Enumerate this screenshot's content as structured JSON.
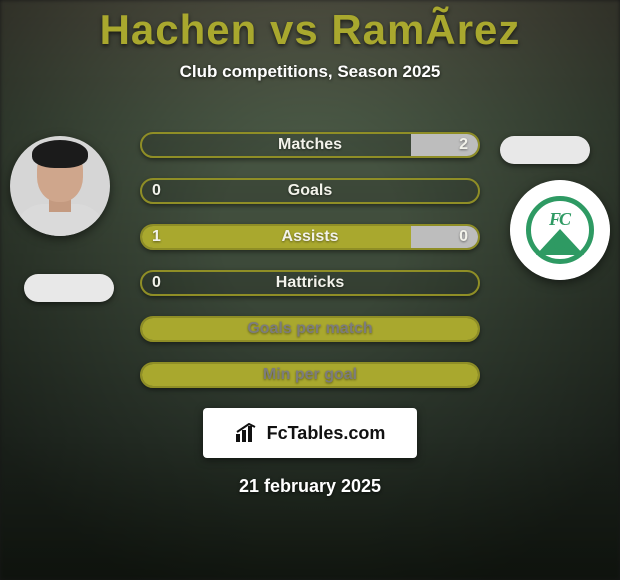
{
  "header": {
    "title": "Hachen vs RamÃ­rez",
    "subtitle": "Club competitions, Season 2025",
    "title_color": "#a9a82e"
  },
  "palette": {
    "olive": "#a9a82e",
    "olive_border": "#8f8e26",
    "grey_fill": "#bdbdbd",
    "text_light": "#f2f2ea",
    "text_grey": "#7c7c7c",
    "label_fontsize": 16
  },
  "avatars": {
    "left_name": "player-hachen",
    "right_name": "club-ferro"
  },
  "bars": [
    {
      "key": "matches",
      "label": "Matches",
      "left_val": "",
      "right_val": "2",
      "left_pct": 0,
      "right_pct": 20,
      "left_color": "",
      "right_color": "#bdbdbd",
      "label_color": "#f2f2ea"
    },
    {
      "key": "goals",
      "label": "Goals",
      "left_val": "0",
      "right_val": "",
      "left_pct": 0,
      "right_pct": 0,
      "left_color": "",
      "right_color": "",
      "label_color": "#f2f2ea"
    },
    {
      "key": "assists",
      "label": "Assists",
      "left_val": "1",
      "right_val": "0",
      "left_pct": 80,
      "right_pct": 20,
      "left_color": "#a9a82e",
      "right_color": "#bdbdbd",
      "label_color": "#f2f2ea"
    },
    {
      "key": "hattricks",
      "label": "Hattricks",
      "left_val": "0",
      "right_val": "",
      "left_pct": 0,
      "right_pct": 0,
      "left_color": "",
      "right_color": "",
      "label_color": "#f2f2ea"
    },
    {
      "key": "gpm",
      "label": "Goals per match",
      "left_val": "",
      "right_val": "",
      "left_pct": 100,
      "right_pct": 0,
      "left_color": "#a9a82e",
      "right_color": "",
      "label_color": "#7c7c7c"
    },
    {
      "key": "mpg",
      "label": "Min per goal",
      "left_val": "",
      "right_val": "",
      "left_pct": 100,
      "right_pct": 0,
      "left_color": "#a9a82e",
      "right_color": "",
      "label_color": "#7c7c7c"
    }
  ],
  "footer": {
    "brand": "FcTables.com",
    "date": "21 february 2025"
  }
}
